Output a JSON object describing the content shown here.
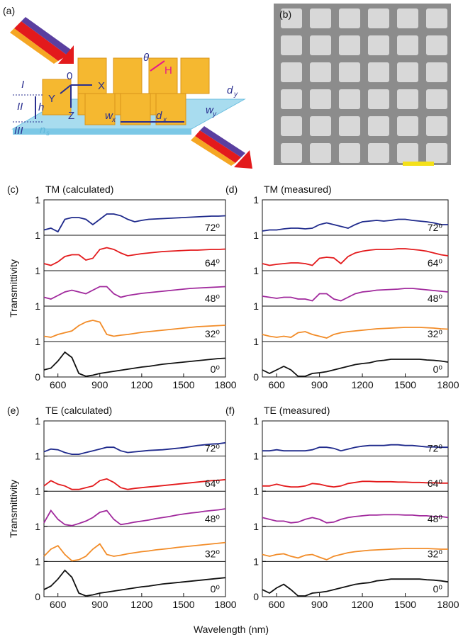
{
  "diagram": {
    "label": "(a)",
    "texts": [
      "I",
      "II",
      "III",
      "h",
      "Y",
      "X",
      "Z",
      "0",
      "θ",
      "H",
      "w",
      "x",
      "d",
      "x",
      "w",
      "y",
      "d",
      "y",
      "n",
      "s"
    ]
  },
  "image": {
    "label": "(b)"
  },
  "xlabel": "Wavelength (nm)",
  "chart_data": [
    {
      "type": "line",
      "label": "(c)",
      "title": "TM (calculated)",
      "ylabel": "Transmittivity",
      "xlim": [
        500,
        1800
      ],
      "xticks": [
        600,
        900,
        1200,
        1500,
        1800
      ],
      "ylim": [
        0,
        1
      ],
      "yticks": [
        0,
        1
      ],
      "x": [
        500,
        550,
        600,
        650,
        700,
        750,
        800,
        850,
        900,
        950,
        1000,
        1050,
        1100,
        1150,
        1200,
        1250,
        1300,
        1350,
        1400,
        1450,
        1500,
        1550,
        1600,
        1650,
        1700,
        1750,
        1800
      ],
      "series": [
        {
          "name": "72⁰",
          "color": "#1f2a8c",
          "values": [
            0.15,
            0.2,
            0.1,
            0.45,
            0.5,
            0.5,
            0.45,
            0.3,
            0.45,
            0.6,
            0.6,
            0.55,
            0.45,
            0.38,
            0.42,
            0.45,
            0.46,
            0.47,
            0.48,
            0.49,
            0.5,
            0.51,
            0.52,
            0.53,
            0.54,
            0.54,
            0.55
          ]
        },
        {
          "name": "64⁰",
          "color": "#e31a1c",
          "values": [
            0.2,
            0.15,
            0.25,
            0.4,
            0.45,
            0.45,
            0.3,
            0.35,
            0.6,
            0.65,
            0.6,
            0.5,
            0.42,
            0.45,
            0.48,
            0.5,
            0.52,
            0.54,
            0.55,
            0.56,
            0.57,
            0.58,
            0.58,
            0.59,
            0.6,
            0.6,
            0.61
          ]
        },
        {
          "name": "48⁰",
          "color": "#a0289c",
          "values": [
            0.25,
            0.2,
            0.3,
            0.4,
            0.45,
            0.4,
            0.35,
            0.45,
            0.55,
            0.55,
            0.35,
            0.25,
            0.3,
            0.33,
            0.36,
            0.38,
            0.4,
            0.42,
            0.44,
            0.46,
            0.48,
            0.5,
            0.51,
            0.52,
            0.53,
            0.54,
            0.55
          ]
        },
        {
          "name": "32⁰",
          "color": "#f28c28",
          "values": [
            0.15,
            0.12,
            0.2,
            0.25,
            0.3,
            0.45,
            0.55,
            0.6,
            0.55,
            0.2,
            0.15,
            0.18,
            0.2,
            0.23,
            0.26,
            0.28,
            0.3,
            0.32,
            0.34,
            0.36,
            0.38,
            0.4,
            0.42,
            0.43,
            0.44,
            0.45,
            0.46
          ]
        },
        {
          "name": "0⁰",
          "color": "#111111",
          "values": [
            0.2,
            0.25,
            0.45,
            0.7,
            0.55,
            0.1,
            0.02,
            0.05,
            0.1,
            0.13,
            0.16,
            0.19,
            0.22,
            0.25,
            0.28,
            0.3,
            0.33,
            0.36,
            0.38,
            0.4,
            0.42,
            0.44,
            0.46,
            0.48,
            0.5,
            0.52,
            0.53
          ]
        }
      ]
    },
    {
      "type": "line",
      "label": "(d)",
      "title": "TM (measured)",
      "xlim": [
        500,
        1800
      ],
      "xticks": [
        600,
        900,
        1200,
        1500,
        1800
      ],
      "ylim": [
        0,
        1
      ],
      "yticks": [
        0,
        1
      ],
      "x": [
        500,
        550,
        600,
        650,
        700,
        750,
        800,
        850,
        900,
        950,
        1000,
        1050,
        1100,
        1150,
        1200,
        1250,
        1300,
        1350,
        1400,
        1450,
        1500,
        1550,
        1600,
        1650,
        1700,
        1750,
        1800
      ],
      "series": [
        {
          "name": "72⁰",
          "color": "#1f2a8c",
          "values": [
            0.12,
            0.15,
            0.15,
            0.18,
            0.2,
            0.2,
            0.18,
            0.2,
            0.3,
            0.35,
            0.3,
            0.25,
            0.2,
            0.3,
            0.38,
            0.4,
            0.42,
            0.4,
            0.42,
            0.45,
            0.45,
            0.42,
            0.4,
            0.38,
            0.35,
            0.3,
            0.3
          ]
        },
        {
          "name": "64⁰",
          "color": "#e31a1c",
          "values": [
            0.2,
            0.15,
            0.18,
            0.2,
            0.22,
            0.22,
            0.2,
            0.15,
            0.35,
            0.38,
            0.36,
            0.2,
            0.4,
            0.5,
            0.55,
            0.58,
            0.6,
            0.6,
            0.6,
            0.62,
            0.62,
            0.6,
            0.58,
            0.55,
            0.5,
            0.45,
            0.42
          ]
        },
        {
          "name": "48⁰",
          "color": "#a0289c",
          "values": [
            0.28,
            0.25,
            0.22,
            0.25,
            0.25,
            0.2,
            0.2,
            0.15,
            0.35,
            0.35,
            0.2,
            0.15,
            0.25,
            0.35,
            0.4,
            0.42,
            0.45,
            0.46,
            0.47,
            0.48,
            0.5,
            0.5,
            0.48,
            0.46,
            0.44,
            0.42,
            0.4
          ]
        },
        {
          "name": "32⁰",
          "color": "#f28c28",
          "values": [
            0.2,
            0.15,
            0.12,
            0.15,
            0.12,
            0.25,
            0.28,
            0.2,
            0.15,
            0.1,
            0.2,
            0.25,
            0.28,
            0.3,
            0.32,
            0.34,
            0.36,
            0.37,
            0.38,
            0.39,
            0.4,
            0.4,
            0.4,
            0.39,
            0.38,
            0.36,
            0.35
          ]
        },
        {
          "name": "0⁰",
          "color": "#111111",
          "values": [
            0.2,
            0.1,
            0.2,
            0.3,
            0.2,
            0.02,
            0.02,
            0.1,
            0.12,
            0.15,
            0.2,
            0.25,
            0.3,
            0.35,
            0.38,
            0.4,
            0.45,
            0.47,
            0.5,
            0.5,
            0.5,
            0.5,
            0.5,
            0.48,
            0.47,
            0.45,
            0.42
          ]
        }
      ]
    },
    {
      "type": "line",
      "label": "(e)",
      "title": "TE (calculated)",
      "ylabel": "Transmittivity",
      "xlim": [
        500,
        1800
      ],
      "xticks": [
        600,
        900,
        1200,
        1500,
        1800
      ],
      "ylim": [
        0,
        1
      ],
      "yticks": [
        0,
        1
      ],
      "x": [
        500,
        550,
        600,
        650,
        700,
        750,
        800,
        850,
        900,
        950,
        1000,
        1050,
        1100,
        1150,
        1200,
        1250,
        1300,
        1350,
        1400,
        1450,
        1500,
        1550,
        1600,
        1650,
        1700,
        1750,
        1800
      ],
      "series": [
        {
          "name": "72⁰",
          "color": "#1f2a8c",
          "values": [
            0.12,
            0.2,
            0.18,
            0.1,
            0.05,
            0.05,
            0.1,
            0.15,
            0.2,
            0.25,
            0.25,
            0.15,
            0.1,
            0.12,
            0.14,
            0.16,
            0.17,
            0.18,
            0.2,
            0.22,
            0.24,
            0.27,
            0.3,
            0.32,
            0.34,
            0.35,
            0.38
          ]
        },
        {
          "name": "64⁰",
          "color": "#e31a1c",
          "values": [
            0.15,
            0.3,
            0.2,
            0.15,
            0.05,
            0.05,
            0.1,
            0.15,
            0.3,
            0.35,
            0.25,
            0.1,
            0.05,
            0.08,
            0.1,
            0.12,
            0.14,
            0.16,
            0.18,
            0.2,
            0.22,
            0.24,
            0.26,
            0.28,
            0.3,
            0.31,
            0.33
          ]
        },
        {
          "name": "48⁰",
          "color": "#a0289c",
          "values": [
            0.1,
            0.45,
            0.2,
            0.05,
            0.02,
            0.08,
            0.15,
            0.25,
            0.4,
            0.45,
            0.2,
            0.05,
            0.08,
            0.12,
            0.15,
            0.18,
            0.22,
            0.25,
            0.28,
            0.32,
            0.35,
            0.38,
            0.4,
            0.43,
            0.45,
            0.47,
            0.5
          ]
        },
        {
          "name": "32⁰",
          "color": "#f28c28",
          "values": [
            0.15,
            0.35,
            0.45,
            0.2,
            0.02,
            0.05,
            0.15,
            0.35,
            0.5,
            0.2,
            0.15,
            0.18,
            0.22,
            0.25,
            0.28,
            0.3,
            0.33,
            0.35,
            0.37,
            0.4,
            0.42,
            0.44,
            0.46,
            0.48,
            0.5,
            0.52,
            0.54
          ]
        },
        {
          "name": "0⁰",
          "color": "#111111",
          "values": [
            0.2,
            0.3,
            0.5,
            0.75,
            0.55,
            0.1,
            0.02,
            0.05,
            0.1,
            0.13,
            0.16,
            0.19,
            0.22,
            0.25,
            0.28,
            0.3,
            0.33,
            0.36,
            0.38,
            0.4,
            0.42,
            0.44,
            0.46,
            0.48,
            0.5,
            0.52,
            0.54
          ]
        }
      ]
    },
    {
      "type": "line",
      "label": "(f)",
      "title": "TE (measured)",
      "xlim": [
        500,
        1800
      ],
      "xticks": [
        600,
        900,
        1200,
        1500,
        1800
      ],
      "ylim": [
        0,
        1
      ],
      "yticks": [
        0,
        1
      ],
      "x": [
        500,
        550,
        600,
        650,
        700,
        750,
        800,
        850,
        900,
        950,
        1000,
        1050,
        1100,
        1150,
        1200,
        1250,
        1300,
        1350,
        1400,
        1450,
        1500,
        1550,
        1600,
        1650,
        1700,
        1750,
        1800
      ],
      "series": [
        {
          "name": "72⁰",
          "color": "#1f2a8c",
          "values": [
            0.15,
            0.15,
            0.18,
            0.15,
            0.15,
            0.15,
            0.15,
            0.18,
            0.25,
            0.25,
            0.22,
            0.15,
            0.2,
            0.25,
            0.28,
            0.3,
            0.3,
            0.3,
            0.32,
            0.32,
            0.3,
            0.3,
            0.28,
            0.26,
            0.26,
            0.25,
            0.25
          ]
        },
        {
          "name": "64⁰",
          "color": "#e31a1c",
          "values": [
            0.15,
            0.15,
            0.2,
            0.15,
            0.12,
            0.12,
            0.15,
            0.22,
            0.2,
            0.15,
            0.12,
            0.15,
            0.22,
            0.25,
            0.28,
            0.28,
            0.27,
            0.27,
            0.27,
            0.26,
            0.26,
            0.25,
            0.25,
            0.24,
            0.24,
            0.23,
            0.23
          ]
        },
        {
          "name": "48⁰",
          "color": "#a0289c",
          "values": [
            0.25,
            0.2,
            0.15,
            0.15,
            0.1,
            0.12,
            0.2,
            0.25,
            0.2,
            0.1,
            0.12,
            0.2,
            0.25,
            0.28,
            0.3,
            0.32,
            0.32,
            0.33,
            0.33,
            0.33,
            0.32,
            0.32,
            0.3,
            0.3,
            0.28,
            0.28,
            0.25
          ]
        },
        {
          "name": "32⁰",
          "color": "#f28c28",
          "values": [
            0.2,
            0.15,
            0.2,
            0.22,
            0.15,
            0.1,
            0.18,
            0.2,
            0.12,
            0.05,
            0.15,
            0.2,
            0.25,
            0.28,
            0.3,
            0.32,
            0.33,
            0.34,
            0.35,
            0.36,
            0.37,
            0.37,
            0.37,
            0.37,
            0.36,
            0.35,
            0.35
          ]
        },
        {
          "name": "0⁰",
          "color": "#111111",
          "values": [
            0.2,
            0.1,
            0.25,
            0.35,
            0.2,
            0.02,
            0.02,
            0.1,
            0.12,
            0.15,
            0.2,
            0.25,
            0.3,
            0.35,
            0.38,
            0.4,
            0.45,
            0.47,
            0.5,
            0.5,
            0.5,
            0.5,
            0.5,
            0.48,
            0.47,
            0.45,
            0.42
          ]
        }
      ]
    }
  ]
}
